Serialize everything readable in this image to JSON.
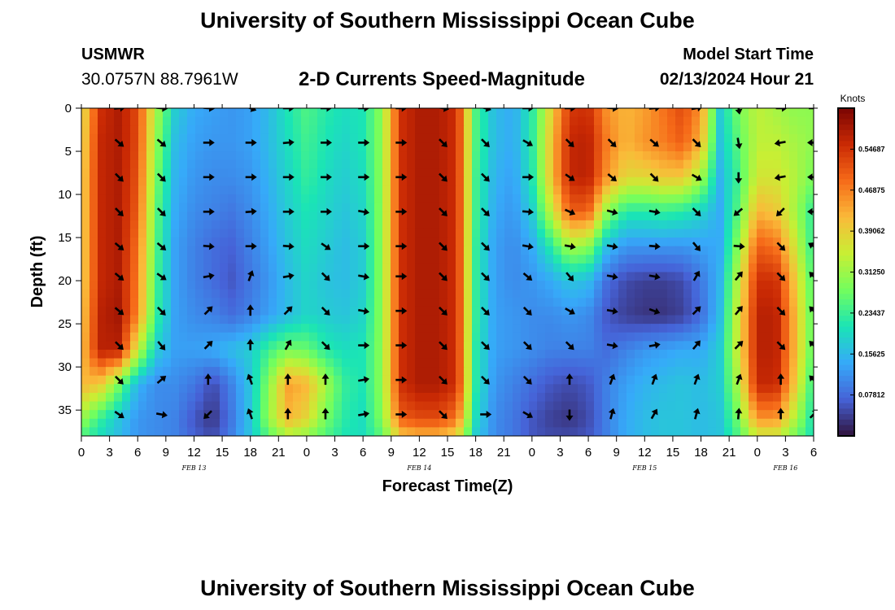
{
  "header": {
    "title": "University of Southern Mississippi Ocean Cube",
    "station": "USMWR",
    "coordinates": "30.0757N  88.7961W",
    "subtitle": "2-D Currents Speed-Magnitude",
    "model_start_label": "Model Start Time",
    "model_start_value": "02/13/2024 Hour 21"
  },
  "footer": {
    "title": "University of Southern Mississippi Ocean Cube"
  },
  "colors": {
    "colormap": [
      "#30123b",
      "#4662d7",
      "#36aaf9",
      "#1ae4b6",
      "#72fe5e",
      "#c8ef34",
      "#faba39",
      "#f66b19",
      "#ca2a04",
      "#7a0403"
    ],
    "arrow": "#000000",
    "background": "#ffffff"
  },
  "chart_data": {
    "type": "heatmap",
    "title": "2-D Currents Speed-Magnitude",
    "xlabel": "Forecast Time(Z)",
    "ylabel": "Depth (ft)",
    "x_range_hours": [
      0,
      78
    ],
    "y_range_ft": [
      0,
      38
    ],
    "x_ticks": [
      {
        "hour": 0,
        "label": "0"
      },
      {
        "hour": 3,
        "label": "3"
      },
      {
        "hour": 6,
        "label": "6"
      },
      {
        "hour": 9,
        "label": "9"
      },
      {
        "hour": 12,
        "label": "12"
      },
      {
        "hour": 15,
        "label": "15"
      },
      {
        "hour": 18,
        "label": "18"
      },
      {
        "hour": 21,
        "label": "21"
      },
      {
        "hour": 24,
        "label": "0"
      },
      {
        "hour": 27,
        "label": "3"
      },
      {
        "hour": 30,
        "label": "6"
      },
      {
        "hour": 33,
        "label": "9"
      },
      {
        "hour": 36,
        "label": "12"
      },
      {
        "hour": 39,
        "label": "15"
      },
      {
        "hour": 42,
        "label": "18"
      },
      {
        "hour": 45,
        "label": "21"
      },
      {
        "hour": 48,
        "label": "0"
      },
      {
        "hour": 51,
        "label": "3"
      },
      {
        "hour": 54,
        "label": "6"
      },
      {
        "hour": 57,
        "label": "9"
      },
      {
        "hour": 60,
        "label": "12"
      },
      {
        "hour": 63,
        "label": "15"
      },
      {
        "hour": 66,
        "label": "18"
      },
      {
        "hour": 69,
        "label": "21"
      },
      {
        "hour": 72,
        "label": "0"
      },
      {
        "hour": 75,
        "label": "3"
      },
      {
        "hour": 78,
        "label": "6"
      }
    ],
    "y_ticks": [
      0,
      5,
      10,
      15,
      20,
      25,
      30,
      35
    ],
    "day_labels": [
      {
        "hour": 12,
        "label": "FEB 13"
      },
      {
        "hour": 36,
        "label": "FEB 14"
      },
      {
        "hour": 60,
        "label": "FEB 15"
      },
      {
        "hour": 75,
        "label": "FEB 16"
      }
    ],
    "colorbar": {
      "unit": "Knots",
      "min": 0,
      "max": 0.625,
      "ticks": [
        "0.54687",
        "0.46875",
        "0.39062",
        "0.31250",
        "0.23437",
        "0.15625",
        "0.07812"
      ],
      "tick_values": [
        0.54687,
        0.46875,
        0.39062,
        0.3125,
        0.23437,
        0.15625,
        0.07812
      ]
    },
    "speed_field_knots": {
      "hours": [
        0,
        2,
        4,
        6,
        8,
        10,
        12,
        14,
        16,
        18,
        20,
        22,
        24,
        26,
        28,
        30,
        32,
        34,
        36,
        38,
        40,
        42,
        44,
        46,
        48,
        50,
        52,
        54,
        56,
        58,
        60,
        62,
        64,
        66,
        68,
        70,
        72,
        74,
        76,
        78
      ],
      "depths_ft": [
        0,
        4,
        8,
        12,
        16,
        20,
        24,
        28,
        32,
        36,
        38
      ],
      "rows": [
        [
          0.36,
          0.55,
          0.58,
          0.52,
          0.32,
          0.18,
          0.14,
          0.13,
          0.12,
          0.13,
          0.16,
          0.21,
          0.25,
          0.22,
          0.2,
          0.21,
          0.3,
          0.55,
          0.58,
          0.58,
          0.55,
          0.25,
          0.16,
          0.14,
          0.22,
          0.38,
          0.54,
          0.55,
          0.45,
          0.42,
          0.44,
          0.48,
          0.52,
          0.45,
          0.18,
          0.28,
          0.34,
          0.32,
          0.3,
          0.3
        ],
        [
          0.37,
          0.56,
          0.58,
          0.52,
          0.3,
          0.16,
          0.13,
          0.12,
          0.12,
          0.13,
          0.16,
          0.2,
          0.24,
          0.21,
          0.19,
          0.21,
          0.3,
          0.55,
          0.58,
          0.58,
          0.55,
          0.25,
          0.16,
          0.14,
          0.22,
          0.4,
          0.56,
          0.57,
          0.47,
          0.42,
          0.45,
          0.47,
          0.5,
          0.42,
          0.17,
          0.26,
          0.34,
          0.34,
          0.32,
          0.3
        ],
        [
          0.38,
          0.56,
          0.58,
          0.51,
          0.28,
          0.15,
          0.12,
          0.11,
          0.11,
          0.12,
          0.15,
          0.19,
          0.23,
          0.2,
          0.18,
          0.2,
          0.3,
          0.55,
          0.58,
          0.58,
          0.55,
          0.24,
          0.15,
          0.13,
          0.21,
          0.4,
          0.56,
          0.57,
          0.45,
          0.38,
          0.38,
          0.4,
          0.4,
          0.32,
          0.15,
          0.24,
          0.36,
          0.36,
          0.33,
          0.28
        ],
        [
          0.38,
          0.56,
          0.58,
          0.5,
          0.26,
          0.14,
          0.11,
          0.1,
          0.09,
          0.11,
          0.14,
          0.18,
          0.21,
          0.19,
          0.17,
          0.19,
          0.3,
          0.55,
          0.58,
          0.58,
          0.55,
          0.24,
          0.14,
          0.12,
          0.18,
          0.34,
          0.5,
          0.5,
          0.3,
          0.22,
          0.22,
          0.23,
          0.22,
          0.19,
          0.14,
          0.26,
          0.42,
          0.4,
          0.32,
          0.22
        ],
        [
          0.38,
          0.56,
          0.58,
          0.48,
          0.25,
          0.13,
          0.1,
          0.08,
          0.07,
          0.1,
          0.13,
          0.17,
          0.2,
          0.18,
          0.16,
          0.18,
          0.3,
          0.55,
          0.58,
          0.58,
          0.55,
          0.23,
          0.13,
          0.11,
          0.14,
          0.22,
          0.32,
          0.3,
          0.16,
          0.12,
          0.12,
          0.12,
          0.12,
          0.13,
          0.14,
          0.3,
          0.5,
          0.48,
          0.36,
          0.22
        ],
        [
          0.38,
          0.56,
          0.58,
          0.47,
          0.24,
          0.13,
          0.1,
          0.08,
          0.06,
          0.09,
          0.12,
          0.16,
          0.19,
          0.17,
          0.16,
          0.18,
          0.3,
          0.55,
          0.58,
          0.58,
          0.55,
          0.23,
          0.13,
          0.11,
          0.12,
          0.14,
          0.17,
          0.16,
          0.08,
          0.05,
          0.04,
          0.04,
          0.05,
          0.09,
          0.15,
          0.34,
          0.55,
          0.55,
          0.4,
          0.24
        ],
        [
          0.39,
          0.57,
          0.59,
          0.46,
          0.23,
          0.13,
          0.11,
          0.1,
          0.08,
          0.1,
          0.13,
          0.16,
          0.19,
          0.18,
          0.17,
          0.19,
          0.3,
          0.55,
          0.58,
          0.58,
          0.55,
          0.23,
          0.13,
          0.12,
          0.11,
          0.11,
          0.12,
          0.11,
          0.06,
          0.04,
          0.03,
          0.03,
          0.04,
          0.08,
          0.16,
          0.36,
          0.57,
          0.57,
          0.42,
          0.25
        ],
        [
          0.4,
          0.57,
          0.57,
          0.35,
          0.18,
          0.13,
          0.13,
          0.14,
          0.16,
          0.18,
          0.24,
          0.28,
          0.27,
          0.22,
          0.2,
          0.21,
          0.3,
          0.55,
          0.58,
          0.58,
          0.55,
          0.22,
          0.13,
          0.12,
          0.11,
          0.1,
          0.1,
          0.1,
          0.08,
          0.1,
          0.12,
          0.13,
          0.14,
          0.14,
          0.18,
          0.36,
          0.57,
          0.57,
          0.42,
          0.25
        ],
        [
          0.42,
          0.4,
          0.28,
          0.15,
          0.11,
          0.11,
          0.09,
          0.05,
          0.1,
          0.17,
          0.3,
          0.44,
          0.42,
          0.32,
          0.23,
          0.21,
          0.3,
          0.55,
          0.58,
          0.58,
          0.55,
          0.22,
          0.12,
          0.1,
          0.08,
          0.06,
          0.05,
          0.06,
          0.1,
          0.13,
          0.15,
          0.16,
          0.17,
          0.16,
          0.18,
          0.33,
          0.56,
          0.56,
          0.4,
          0.22
        ],
        [
          0.31,
          0.23,
          0.17,
          0.12,
          0.11,
          0.1,
          0.06,
          0.03,
          0.09,
          0.17,
          0.31,
          0.42,
          0.38,
          0.28,
          0.22,
          0.2,
          0.29,
          0.5,
          0.52,
          0.52,
          0.48,
          0.2,
          0.11,
          0.09,
          0.06,
          0.04,
          0.03,
          0.05,
          0.1,
          0.14,
          0.16,
          0.17,
          0.17,
          0.16,
          0.17,
          0.28,
          0.45,
          0.45,
          0.33,
          0.2
        ],
        [
          0.25,
          0.2,
          0.16,
          0.12,
          0.11,
          0.1,
          0.07,
          0.05,
          0.1,
          0.17,
          0.26,
          0.32,
          0.3,
          0.25,
          0.21,
          0.2,
          0.26,
          0.4,
          0.42,
          0.42,
          0.38,
          0.18,
          0.11,
          0.09,
          0.06,
          0.05,
          0.05,
          0.06,
          0.1,
          0.14,
          0.16,
          0.17,
          0.17,
          0.16,
          0.17,
          0.25,
          0.35,
          0.35,
          0.28,
          0.2
        ]
      ]
    },
    "vectors": {
      "hours": [
        4,
        8.5,
        13.5,
        18,
        22,
        26,
        30,
        34,
        38.5,
        43,
        47.5,
        52,
        56.5,
        61,
        65.5,
        70,
        74.5,
        78
      ],
      "depths_ft": [
        0,
        4,
        8,
        12,
        16,
        19.5,
        23.5,
        27.5,
        31.5,
        35.5
      ],
      "direction_deg": [
        [
          85,
          95,
          95,
          110,
          90,
          90,
          90,
          90,
          100,
          105,
          90,
          90,
          95,
          85,
          80,
          170,
          90,
          90
        ],
        [
          130,
          130,
          90,
          90,
          85,
          90,
          90,
          90,
          135,
          135,
          120,
          135,
          135,
          130,
          135,
          170,
          260,
          270
        ],
        [
          135,
          135,
          90,
          90,
          90,
          90,
          90,
          90,
          135,
          135,
          90,
          125,
          130,
          135,
          120,
          180,
          260,
          270
        ],
        [
          135,
          135,
          90,
          85,
          90,
          90,
          100,
          90,
          135,
          135,
          95,
          115,
          105,
          100,
          135,
          230,
          225,
          270
        ],
        [
          130,
          130,
          95,
          90,
          95,
          125,
          90,
          90,
          135,
          135,
          100,
          100,
          100,
          95,
          140,
          95,
          135,
          300
        ],
        [
          130,
          125,
          80,
          20,
          80,
          135,
          100,
          90,
          135,
          135,
          130,
          140,
          100,
          100,
          30,
          40,
          135,
          315
        ],
        [
          130,
          135,
          45,
          0,
          45,
          135,
          100,
          90,
          135,
          135,
          135,
          120,
          100,
          110,
          45,
          40,
          135,
          315
        ],
        [
          135,
          140,
          45,
          0,
          30,
          135,
          90,
          90,
          135,
          135,
          135,
          135,
          100,
          80,
          40,
          45,
          135,
          315
        ],
        [
          135,
          50,
          0,
          340,
          0,
          0,
          80,
          90,
          135,
          135,
          135,
          0,
          20,
          20,
          20,
          20,
          0,
          315
        ],
        [
          125,
          100,
          225,
          340,
          0,
          0,
          80,
          90,
          135,
          90,
          120,
          180,
          15,
          30,
          15,
          5,
          0,
          45
        ]
      ]
    }
  }
}
